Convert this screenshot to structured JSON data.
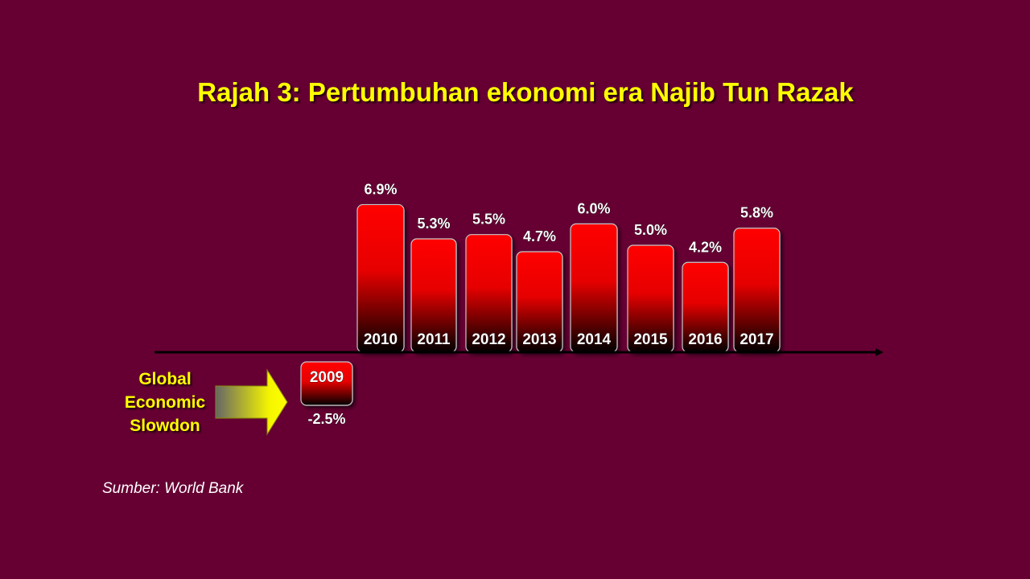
{
  "title": "Rajah 3: Pertumbuhan ekonomi era Najib Tun Razak",
  "annotation": {
    "label_lines": [
      "Global",
      "Economic",
      "Slowdon"
    ]
  },
  "source": "Sumber: World Bank",
  "colors": {
    "background": "#660033",
    "title": "#ffff00",
    "bar_top": "#ff0000",
    "bar_bottom": "#000000",
    "value_label": "#ffffff"
  },
  "chart_data": {
    "type": "bar",
    "categories": [
      "2009",
      "2010",
      "2011",
      "2012",
      "2013",
      "2014",
      "2015",
      "2016",
      "2017"
    ],
    "values": [
      -2.5,
      6.9,
      5.3,
      5.5,
      4.7,
      6.0,
      5.0,
      4.2,
      5.8
    ],
    "value_labels": [
      "-2.5%",
      "6.9%",
      "5.3%",
      "5.5%",
      "4.7%",
      "6.0%",
      "5.0%",
      "4.2%",
      "5.8%"
    ],
    "title": "Rajah 3: Pertumbuhan ekonomi era Najib Tun Razak",
    "xlabel": "",
    "ylabel": "",
    "grid": false,
    "legend": "none"
  }
}
